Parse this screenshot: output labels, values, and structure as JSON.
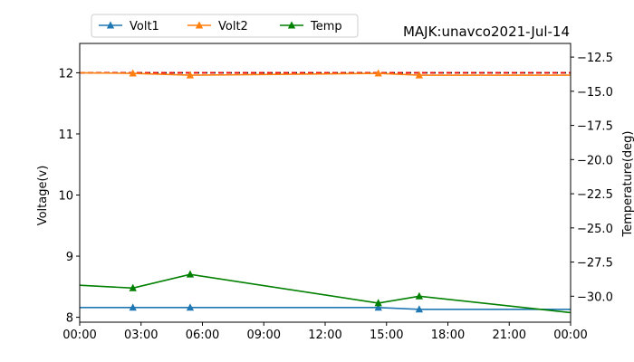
{
  "chart_data": {
    "type": "line",
    "title": "MAJK:unavco2021-Jul-14",
    "ylabel": "Voltage(v)",
    "y2label": "Temperature(deg)",
    "x_ticks": [
      "00:00",
      "03:00",
      "06:00",
      "09:00",
      "12:00",
      "15:00",
      "18:00",
      "21:00",
      "00:00"
    ],
    "x_tick_hours": [
      0,
      3,
      6,
      9,
      12,
      15,
      18,
      21,
      24
    ],
    "xlim": [
      0,
      24
    ],
    "ylim": [
      7.92,
      12.48
    ],
    "y2lim": [
      -31.9,
      -11.5
    ],
    "y_ticks": [
      8,
      9,
      10,
      11,
      12
    ],
    "y2_ticks": [
      -30.0,
      -27.5,
      -25.0,
      -22.5,
      -20.0,
      -17.5,
      -15.0,
      -12.5
    ],
    "y2_tick_labels": [
      "−30.0",
      "−27.5",
      "−25.0",
      "−22.5",
      "−20.0",
      "−17.5",
      "−15.0",
      "−12.5"
    ],
    "legend_position": "top-left",
    "grid": false,
    "series": [
      {
        "name": "Volt1",
        "axis": "left",
        "color": "#1f77b4",
        "x_hours": [
          0,
          2.6,
          5.4,
          14.6,
          16.6,
          24
        ],
        "values": [
          8.16,
          8.16,
          8.16,
          8.16,
          8.13,
          8.13
        ],
        "marker_idx": [
          1,
          2,
          3,
          4
        ]
      },
      {
        "name": "Volt2",
        "axis": "left",
        "color": "#ff7f0e",
        "x_hours": [
          0,
          2.6,
          5.4,
          14.6,
          16.6,
          24
        ],
        "values": [
          12.0,
          11.99,
          11.96,
          11.99,
          11.96,
          11.96
        ],
        "marker_idx": [
          1,
          2,
          3,
          4
        ]
      },
      {
        "name": "Temp",
        "axis": "right",
        "color": "#008000",
        "x_hours": [
          0,
          2.6,
          5.4,
          14.6,
          16.6,
          24
        ],
        "values": [
          -29.2,
          -29.4,
          -28.4,
          -30.5,
          -30.0,
          -31.2
        ],
        "marker_idx": [
          1,
          2,
          3,
          4
        ]
      }
    ],
    "reference_lines": [
      {
        "axis": "left",
        "value": 12.0,
        "color": "#000000",
        "style": "dashed"
      },
      {
        "axis": "left",
        "value": 12.0,
        "color": "#ff0000",
        "style": "dashed"
      }
    ]
  }
}
